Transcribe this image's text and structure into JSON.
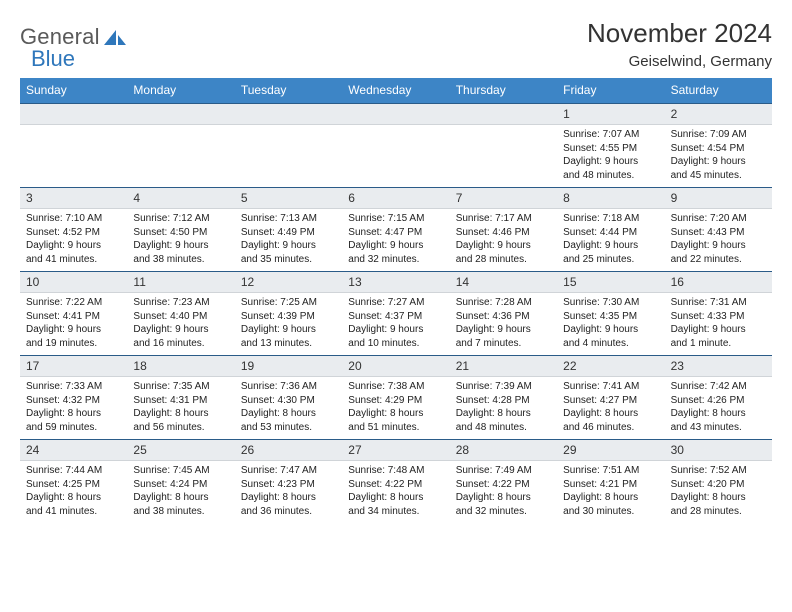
{
  "logo": {
    "text1": "General",
    "text2": "Blue"
  },
  "title": "November 2024",
  "subtitle": "Geiselwind, Germany",
  "colors": {
    "header_bg": "#3d85c6",
    "header_text": "#ffffff",
    "daynum_bg": "#e9ecef",
    "daynum_border_top": "#2a5b88",
    "logo_gray": "#5a5a5a",
    "logo_blue": "#2f77bb"
  },
  "day_names": [
    "Sunday",
    "Monday",
    "Tuesday",
    "Wednesday",
    "Thursday",
    "Friday",
    "Saturday"
  ],
  "weeks": [
    {
      "nums": [
        "",
        "",
        "",
        "",
        "",
        "1",
        "2"
      ],
      "cells": [
        null,
        null,
        null,
        null,
        null,
        {
          "sunrise": "Sunrise: 7:07 AM",
          "sunset": "Sunset: 4:55 PM",
          "d1": "Daylight: 9 hours",
          "d2": "and 48 minutes."
        },
        {
          "sunrise": "Sunrise: 7:09 AM",
          "sunset": "Sunset: 4:54 PM",
          "d1": "Daylight: 9 hours",
          "d2": "and 45 minutes."
        }
      ]
    },
    {
      "nums": [
        "3",
        "4",
        "5",
        "6",
        "7",
        "8",
        "9"
      ],
      "cells": [
        {
          "sunrise": "Sunrise: 7:10 AM",
          "sunset": "Sunset: 4:52 PM",
          "d1": "Daylight: 9 hours",
          "d2": "and 41 minutes."
        },
        {
          "sunrise": "Sunrise: 7:12 AM",
          "sunset": "Sunset: 4:50 PM",
          "d1": "Daylight: 9 hours",
          "d2": "and 38 minutes."
        },
        {
          "sunrise": "Sunrise: 7:13 AM",
          "sunset": "Sunset: 4:49 PM",
          "d1": "Daylight: 9 hours",
          "d2": "and 35 minutes."
        },
        {
          "sunrise": "Sunrise: 7:15 AM",
          "sunset": "Sunset: 4:47 PM",
          "d1": "Daylight: 9 hours",
          "d2": "and 32 minutes."
        },
        {
          "sunrise": "Sunrise: 7:17 AM",
          "sunset": "Sunset: 4:46 PM",
          "d1": "Daylight: 9 hours",
          "d2": "and 28 minutes."
        },
        {
          "sunrise": "Sunrise: 7:18 AM",
          "sunset": "Sunset: 4:44 PM",
          "d1": "Daylight: 9 hours",
          "d2": "and 25 minutes."
        },
        {
          "sunrise": "Sunrise: 7:20 AM",
          "sunset": "Sunset: 4:43 PM",
          "d1": "Daylight: 9 hours",
          "d2": "and 22 minutes."
        }
      ]
    },
    {
      "nums": [
        "10",
        "11",
        "12",
        "13",
        "14",
        "15",
        "16"
      ],
      "cells": [
        {
          "sunrise": "Sunrise: 7:22 AM",
          "sunset": "Sunset: 4:41 PM",
          "d1": "Daylight: 9 hours",
          "d2": "and 19 minutes."
        },
        {
          "sunrise": "Sunrise: 7:23 AM",
          "sunset": "Sunset: 4:40 PM",
          "d1": "Daylight: 9 hours",
          "d2": "and 16 minutes."
        },
        {
          "sunrise": "Sunrise: 7:25 AM",
          "sunset": "Sunset: 4:39 PM",
          "d1": "Daylight: 9 hours",
          "d2": "and 13 minutes."
        },
        {
          "sunrise": "Sunrise: 7:27 AM",
          "sunset": "Sunset: 4:37 PM",
          "d1": "Daylight: 9 hours",
          "d2": "and 10 minutes."
        },
        {
          "sunrise": "Sunrise: 7:28 AM",
          "sunset": "Sunset: 4:36 PM",
          "d1": "Daylight: 9 hours",
          "d2": "and 7 minutes."
        },
        {
          "sunrise": "Sunrise: 7:30 AM",
          "sunset": "Sunset: 4:35 PM",
          "d1": "Daylight: 9 hours",
          "d2": "and 4 minutes."
        },
        {
          "sunrise": "Sunrise: 7:31 AM",
          "sunset": "Sunset: 4:33 PM",
          "d1": "Daylight: 9 hours",
          "d2": "and 1 minute."
        }
      ]
    },
    {
      "nums": [
        "17",
        "18",
        "19",
        "20",
        "21",
        "22",
        "23"
      ],
      "cells": [
        {
          "sunrise": "Sunrise: 7:33 AM",
          "sunset": "Sunset: 4:32 PM",
          "d1": "Daylight: 8 hours",
          "d2": "and 59 minutes."
        },
        {
          "sunrise": "Sunrise: 7:35 AM",
          "sunset": "Sunset: 4:31 PM",
          "d1": "Daylight: 8 hours",
          "d2": "and 56 minutes."
        },
        {
          "sunrise": "Sunrise: 7:36 AM",
          "sunset": "Sunset: 4:30 PM",
          "d1": "Daylight: 8 hours",
          "d2": "and 53 minutes."
        },
        {
          "sunrise": "Sunrise: 7:38 AM",
          "sunset": "Sunset: 4:29 PM",
          "d1": "Daylight: 8 hours",
          "d2": "and 51 minutes."
        },
        {
          "sunrise": "Sunrise: 7:39 AM",
          "sunset": "Sunset: 4:28 PM",
          "d1": "Daylight: 8 hours",
          "d2": "and 48 minutes."
        },
        {
          "sunrise": "Sunrise: 7:41 AM",
          "sunset": "Sunset: 4:27 PM",
          "d1": "Daylight: 8 hours",
          "d2": "and 46 minutes."
        },
        {
          "sunrise": "Sunrise: 7:42 AM",
          "sunset": "Sunset: 4:26 PM",
          "d1": "Daylight: 8 hours",
          "d2": "and 43 minutes."
        }
      ]
    },
    {
      "nums": [
        "24",
        "25",
        "26",
        "27",
        "28",
        "29",
        "30"
      ],
      "cells": [
        {
          "sunrise": "Sunrise: 7:44 AM",
          "sunset": "Sunset: 4:25 PM",
          "d1": "Daylight: 8 hours",
          "d2": "and 41 minutes."
        },
        {
          "sunrise": "Sunrise: 7:45 AM",
          "sunset": "Sunset: 4:24 PM",
          "d1": "Daylight: 8 hours",
          "d2": "and 38 minutes."
        },
        {
          "sunrise": "Sunrise: 7:47 AM",
          "sunset": "Sunset: 4:23 PM",
          "d1": "Daylight: 8 hours",
          "d2": "and 36 minutes."
        },
        {
          "sunrise": "Sunrise: 7:48 AM",
          "sunset": "Sunset: 4:22 PM",
          "d1": "Daylight: 8 hours",
          "d2": "and 34 minutes."
        },
        {
          "sunrise": "Sunrise: 7:49 AM",
          "sunset": "Sunset: 4:22 PM",
          "d1": "Daylight: 8 hours",
          "d2": "and 32 minutes."
        },
        {
          "sunrise": "Sunrise: 7:51 AM",
          "sunset": "Sunset: 4:21 PM",
          "d1": "Daylight: 8 hours",
          "d2": "and 30 minutes."
        },
        {
          "sunrise": "Sunrise: 7:52 AM",
          "sunset": "Sunset: 4:20 PM",
          "d1": "Daylight: 8 hours",
          "d2": "and 28 minutes."
        }
      ]
    }
  ]
}
